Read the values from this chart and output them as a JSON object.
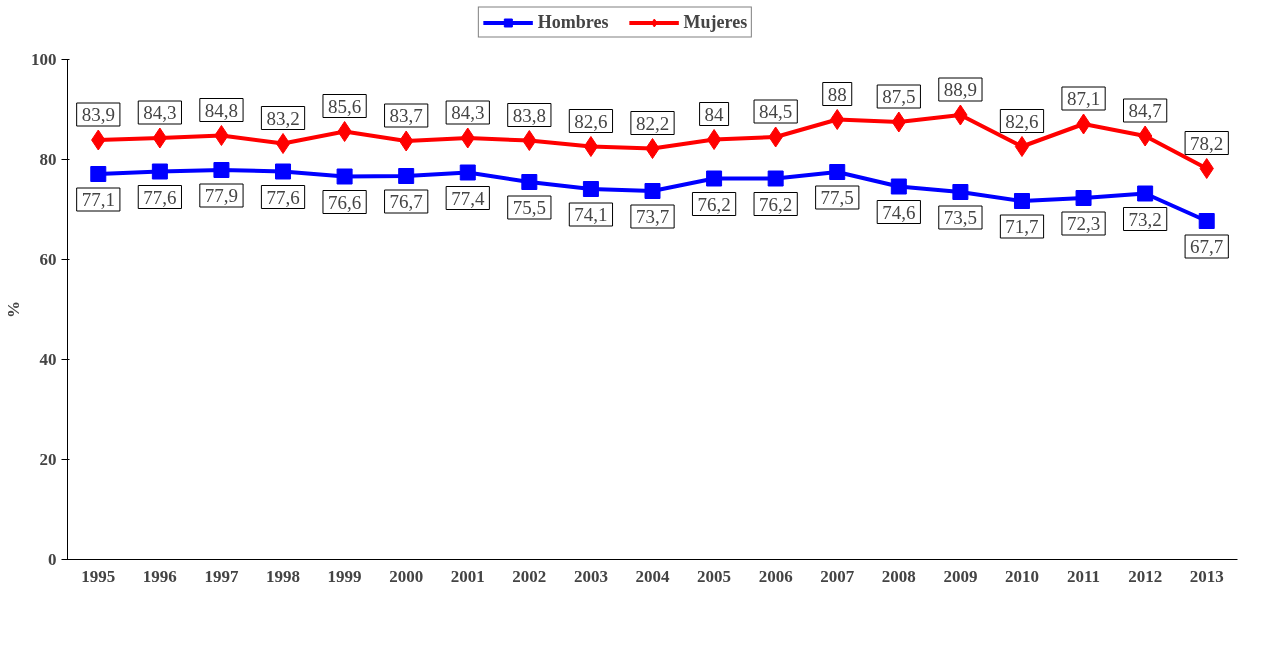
{
  "chart_data": {
    "type": "line",
    "ylabel": "%",
    "categories": [
      "1995",
      "1996",
      "1997",
      "1998",
      "1999",
      "2000",
      "2001",
      "2002",
      "2003",
      "2004",
      "2005",
      "2006",
      "2007",
      "2008",
      "2009",
      "2010",
      "2011",
      "2012",
      "2013"
    ],
    "series": [
      {
        "name": "Hombres",
        "color": "#0000ff",
        "marker": "square",
        "values": [
          77.1,
          77.6,
          77.9,
          77.6,
          76.6,
          76.7,
          77.4,
          75.5,
          74.1,
          73.7,
          76.2,
          76.2,
          77.5,
          74.6,
          73.5,
          71.7,
          72.3,
          73.2,
          67.7
        ],
        "value_labels": [
          "77,1",
          "77,6",
          "77,9",
          "77,6",
          "76,6",
          "76,7",
          "77,4",
          "75,5",
          "74,1",
          "73,7",
          "76,2",
          "76,2",
          "77,5",
          "74,6",
          "73,5",
          "71,7",
          "72,3",
          "73,2",
          "67,7"
        ]
      },
      {
        "name": "Mujeres",
        "color": "#ff0000",
        "marker": "diamond",
        "values": [
          83.9,
          84.3,
          84.8,
          83.2,
          85.6,
          83.7,
          84.3,
          83.8,
          82.6,
          82.2,
          84,
          84.5,
          88,
          87.5,
          88.9,
          82.6,
          87.1,
          84.7,
          78.2
        ],
        "value_labels": [
          "83,9",
          "84,3",
          "84,8",
          "83,2",
          "85,6",
          "83,7",
          "84,3",
          "83,8",
          "82,6",
          "82,2",
          "84",
          "84,5",
          "88",
          "87,5",
          "88,9",
          "82,6",
          "87,1",
          "84,7",
          "78,2"
        ]
      }
    ],
    "ylim": [
      0,
      100
    ],
    "yticks": [
      0,
      20,
      40,
      60,
      80,
      100
    ],
    "grid": false,
    "legend": "top",
    "line_style": "solid"
  }
}
